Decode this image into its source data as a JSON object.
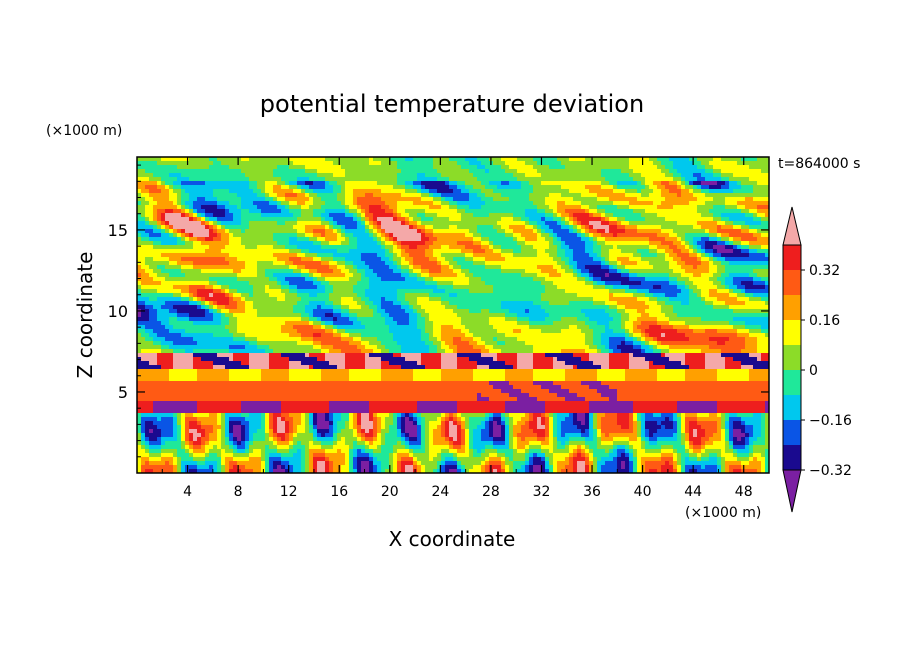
{
  "chart_data": {
    "type": "heatmap",
    "title": "potential temperature deviation",
    "xlabel": "X coordinate",
    "ylabel": "Z coordinate",
    "x_unit": "(×1000 m)",
    "y_unit": "(×1000 m)",
    "time_label": "t=864000 s",
    "xlim": [
      0,
      50
    ],
    "ylim": [
      0,
      19.5
    ],
    "x_ticks": [
      "4",
      "8",
      "12",
      "16",
      "20",
      "24",
      "28",
      "32",
      "36",
      "40",
      "44",
      "48"
    ],
    "y_ticks": [
      "5",
      "10",
      "15"
    ],
    "colorbar": {
      "levels": [
        -0.4,
        -0.32,
        -0.24,
        -0.16,
        -0.08,
        0,
        0.08,
        0.16,
        0.24,
        0.32,
        0.4
      ],
      "labels": [
        "0.32",
        "0.16",
        "0",
        "−0.16",
        "−0.32"
      ],
      "colors": [
        "#7b1fa2",
        "#1a0a8f",
        "#0a55e6",
        "#00c8ee",
        "#1fe89a",
        "#8cdc28",
        "#ffff00",
        "#ffa000",
        "#ff5a14",
        "#ee1e1e",
        "#f4a8a8"
      ]
    }
  }
}
